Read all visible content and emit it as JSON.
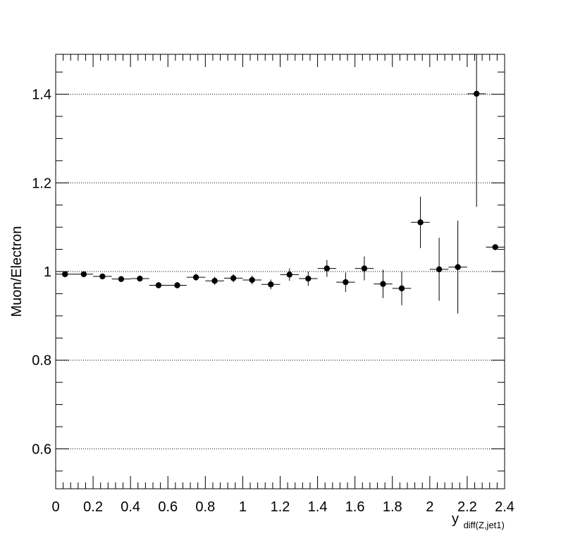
{
  "chart_data": {
    "type": "scatter",
    "style": "errorbar-points",
    "title": "",
    "ylabel": "Muon/Electron",
    "xlabel_main": "y",
    "xlabel_sub": "diff(Z,jet1)",
    "xlim": [
      0,
      2.4
    ],
    "ylim": [
      0.51,
      1.49
    ],
    "xticks": [
      0,
      0.2,
      0.4,
      0.6,
      0.8,
      1,
      1.2,
      1.4,
      1.6,
      1.8,
      2,
      2.2,
      2.4
    ],
    "xtick_labels": [
      "0",
      "0.2",
      "0.4",
      "0.6",
      "0.8",
      "1",
      "1.2",
      "1.4",
      "1.6",
      "1.8",
      "2",
      "2.2",
      "2.4"
    ],
    "yticks": [
      0.6,
      0.8,
      1,
      1.2,
      1.4
    ],
    "ytick_labels": [
      "0.6",
      "0.8",
      "1",
      "1.2",
      "1.4"
    ],
    "grid": "horizontal dotted at major y ticks",
    "bin_halfwidth": 0.05,
    "points": [
      {
        "x": 0.05,
        "y": 0.994,
        "err": 0.004
      },
      {
        "x": 0.15,
        "y": 0.994,
        "err": 0.004
      },
      {
        "x": 0.25,
        "y": 0.989,
        "err": 0.005
      },
      {
        "x": 0.35,
        "y": 0.983,
        "err": 0.005
      },
      {
        "x": 0.45,
        "y": 0.984,
        "err": 0.006
      },
      {
        "x": 0.55,
        "y": 0.969,
        "err": 0.007
      },
      {
        "x": 0.65,
        "y": 0.969,
        "err": 0.007
      },
      {
        "x": 0.75,
        "y": 0.987,
        "err": 0.008
      },
      {
        "x": 0.85,
        "y": 0.979,
        "err": 0.009
      },
      {
        "x": 0.95,
        "y": 0.985,
        "err": 0.009
      },
      {
        "x": 1.05,
        "y": 0.981,
        "err": 0.01
      },
      {
        "x": 1.15,
        "y": 0.971,
        "err": 0.011
      },
      {
        "x": 1.25,
        "y": 0.993,
        "err": 0.014
      },
      {
        "x": 1.35,
        "y": 0.984,
        "err": 0.016
      },
      {
        "x": 1.45,
        "y": 1.007,
        "err": 0.019
      },
      {
        "x": 1.55,
        "y": 0.976,
        "err": 0.022
      },
      {
        "x": 1.65,
        "y": 1.007,
        "err": 0.027
      },
      {
        "x": 1.75,
        "y": 0.972,
        "err": 0.032
      },
      {
        "x": 1.85,
        "y": 0.962,
        "err": 0.038
      },
      {
        "x": 1.95,
        "y": 1.111,
        "err": 0.058
      },
      {
        "x": 2.05,
        "y": 1.005,
        "err": 0.071
      },
      {
        "x": 2.15,
        "y": 1.01,
        "err": 0.105
      },
      {
        "x": 2.25,
        "y": 1.401,
        "err": 0.255
      },
      {
        "x": 2.35,
        "y": 1.055,
        "err": 0.0
      }
    ],
    "colors": {
      "marker": "#000000",
      "axis": "#000000",
      "grid": "#000000"
    }
  }
}
